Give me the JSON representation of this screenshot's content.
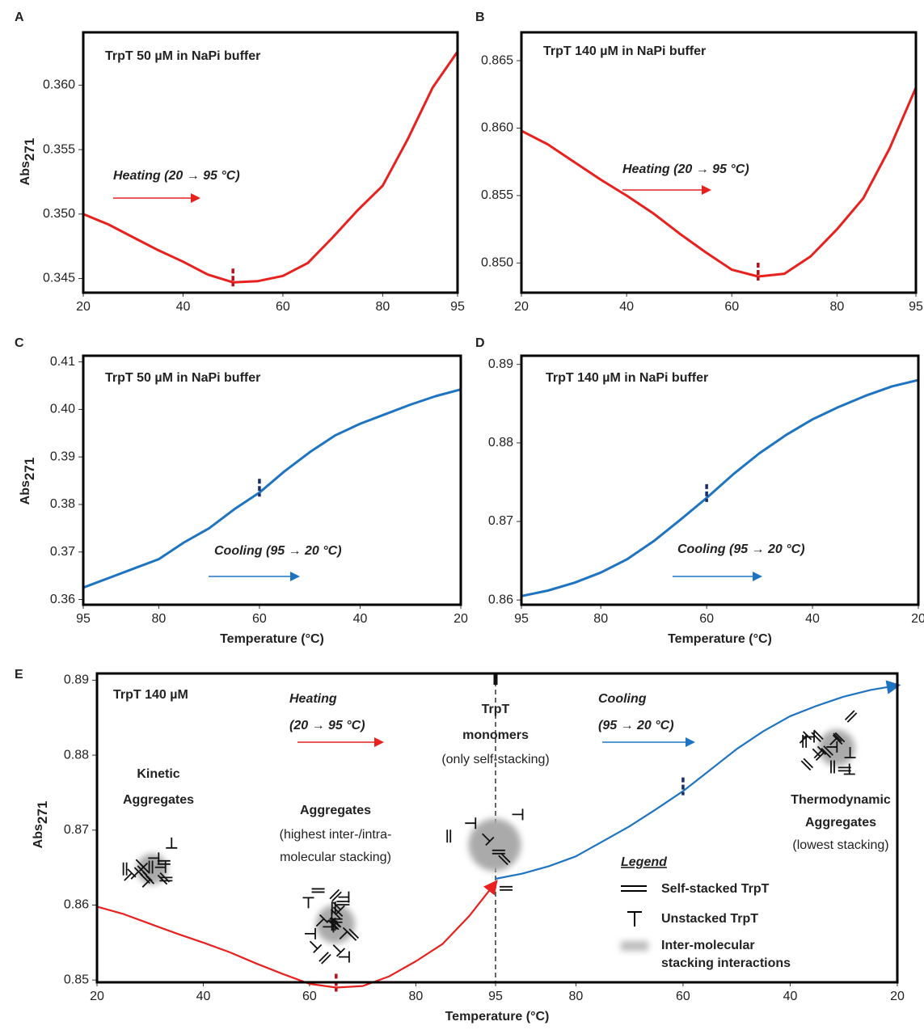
{
  "chart_data": [
    {
      "type": "line",
      "panel_label": "A",
      "title": "TrpT 50 µM in NaPi buffer",
      "annotation": "Heating (20 → 95 °C)",
      "y_label": "Abs",
      "y_label_subscript": "271",
      "xlim": [
        20,
        95
      ],
      "xticks": [
        20,
        40,
        60,
        80,
        95
      ],
      "ylim": [
        0.3439,
        0.3641
      ],
      "yticks": [
        0.345,
        {
          "value": 0.35,
          "label": "0.350"
        },
        0.355,
        {
          "value": 0.36,
          "label": "0.360"
        }
      ],
      "series": [
        {
          "color": "#e8211f",
          "marker_x": 50,
          "marker_color": "#b5121b",
          "x": [
            20,
            25,
            30,
            35,
            40,
            45,
            50,
            55,
            60,
            65,
            70,
            75,
            80,
            85,
            90,
            95
          ],
          "values": [
            0.35,
            0.3492,
            0.3482,
            0.3472,
            0.3463,
            0.3453,
            0.3447,
            0.3448,
            0.3452,
            0.3462,
            0.3482,
            0.3503,
            0.3522,
            0.3558,
            0.3598,
            0.3626
          ]
        }
      ]
    },
    {
      "type": "line",
      "panel_label": "B",
      "title": "TrpT 140 µM in NaPi buffer",
      "annotation": "Heating (20 → 95 °C)",
      "xlim": [
        20,
        95
      ],
      "xticks": [
        20,
        40,
        60,
        80,
        95
      ],
      "ylim": [
        0.8478,
        0.8671
      ],
      "yticks": [
        {
          "value": 0.85,
          "label": "0.850"
        },
        0.855,
        {
          "value": 0.86,
          "label": "0.860"
        },
        0.865
      ],
      "series": [
        {
          "color": "#e8211f",
          "marker_x": 65,
          "marker_color": "#b5121b",
          "x": [
            20,
            25,
            30,
            35,
            40,
            45,
            50,
            55,
            60,
            65,
            70,
            75,
            80,
            85,
            90,
            95
          ],
          "values": [
            0.8598,
            0.8588,
            0.8575,
            0.8562,
            0.855,
            0.8537,
            0.8522,
            0.8508,
            0.8495,
            0.849,
            0.8492,
            0.8505,
            0.8525,
            0.8548,
            0.8585,
            0.863
          ]
        }
      ]
    },
    {
      "type": "line",
      "panel_label": "C",
      "title": "TrpT 50 µM in NaPi buffer",
      "annotation": "Cooling (95 → 20 °C)",
      "y_label": "Abs",
      "y_label_subscript": "271",
      "x_label": "Temperature (°C)",
      "xlim": [
        95,
        20
      ],
      "xticks": [
        95,
        80,
        60,
        40,
        20
      ],
      "ylim": [
        0.3589,
        0.4113
      ],
      "yticks": [
        0.36,
        0.37,
        0.38,
        0.39,
        {
          "value": 0.4,
          "label": "0.40"
        },
        0.41
      ],
      "series": [
        {
          "color": "#1f74c2",
          "marker_x": 60,
          "marker_color": "#1a2d6b",
          "x": [
            95,
            90,
            85,
            80,
            75,
            70,
            65,
            60,
            55,
            50,
            45,
            40,
            35,
            30,
            25,
            20
          ],
          "values": [
            0.3625,
            0.3645,
            0.3665,
            0.3685,
            0.372,
            0.375,
            0.379,
            0.3825,
            0.387,
            0.391,
            0.3945,
            0.397,
            0.399,
            0.401,
            0.4028,
            0.4042
          ]
        }
      ]
    },
    {
      "type": "line",
      "panel_label": "D",
      "title": "TrpT 140 µM in NaPi buffer",
      "annotation": "Cooling (95 → 20 °C)",
      "x_label": "Temperature (°C)",
      "xlim": [
        95,
        20
      ],
      "xticks": [
        95,
        80,
        60,
        40,
        20
      ],
      "ylim": [
        0.8594,
        0.8911
      ],
      "yticks": [
        0.86,
        0.87,
        0.88,
        0.89
      ],
      "series": [
        {
          "color": "#1f74c2",
          "marker_x": 60,
          "marker_color": "#1a2d6b",
          "x": [
            95,
            90,
            85,
            80,
            75,
            70,
            65,
            60,
            55,
            50,
            45,
            40,
            35,
            30,
            25,
            20
          ],
          "values": [
            0.8605,
            0.8612,
            0.8622,
            0.8635,
            0.8652,
            0.8675,
            0.8702,
            0.873,
            0.876,
            0.8787,
            0.881,
            0.883,
            0.8846,
            0.886,
            0.8872,
            0.888
          ]
        }
      ]
    },
    {
      "type": "line",
      "panel_label": "E",
      "title": "TrpT 140 µM",
      "y_label": "Abs",
      "y_label_subscript": "271",
      "x_label": "Temperature (°C)",
      "annotations": [
        "Heating",
        "(20 → 95 °C)",
        "Cooling",
        "(95 → 20 °C)",
        "TrpT",
        "monomers",
        "(only self-stacking)",
        "Kinetic",
        "Aggregates",
        "Aggregates",
        "(highest inter-/intra-",
        "molecular stacking)",
        "Thermodynamic",
        "Aggregates",
        "(lowest stacking)"
      ],
      "legend": {
        "title": "Legend",
        "entries": [
          [
            "Self-stacked TrpT"
          ],
          [
            "Unstacked TrpT"
          ],
          [
            "Inter-molecular",
            "stacking interactions"
          ]
        ]
      },
      "xlim": [
        20,
        95
      ],
      "xticks": [
        20,
        40,
        60,
        80,
        95
      ],
      "x2lim": [
        95,
        20
      ],
      "x2ticks": [
        80,
        60,
        40,
        20
      ],
      "ylim": [
        0.8497,
        0.8909
      ],
      "yticks": [
        0.85,
        0.86,
        0.87,
        0.88,
        0.89
      ],
      "series": [
        {
          "color": "#e8211f",
          "marker_x": 65,
          "marker_color": "#b5121b",
          "x": [
            20,
            25,
            30,
            35,
            40,
            45,
            50,
            55,
            60,
            65,
            70,
            75,
            80,
            85,
            90,
            95
          ],
          "values": [
            0.8598,
            0.8588,
            0.8575,
            0.8562,
            0.855,
            0.8537,
            0.8522,
            0.8508,
            0.8495,
            0.849,
            0.8492,
            0.8505,
            0.8525,
            0.8548,
            0.8585,
            0.863
          ]
        },
        {
          "color": "#1f74c2",
          "axis": "x2",
          "marker_x": 60,
          "marker_color": "#1a2d6b",
          "x": [
            95,
            90,
            85,
            80,
            75,
            70,
            65,
            60,
            55,
            50,
            45,
            40,
            35,
            30,
            25,
            20
          ],
          "values": [
            0.8635,
            0.8642,
            0.8652,
            0.8665,
            0.8685,
            0.8705,
            0.8728,
            0.8752,
            0.878,
            0.8808,
            0.8832,
            0.8852,
            0.8866,
            0.8878,
            0.8887,
            0.8893
          ]
        }
      ]
    }
  ]
}
